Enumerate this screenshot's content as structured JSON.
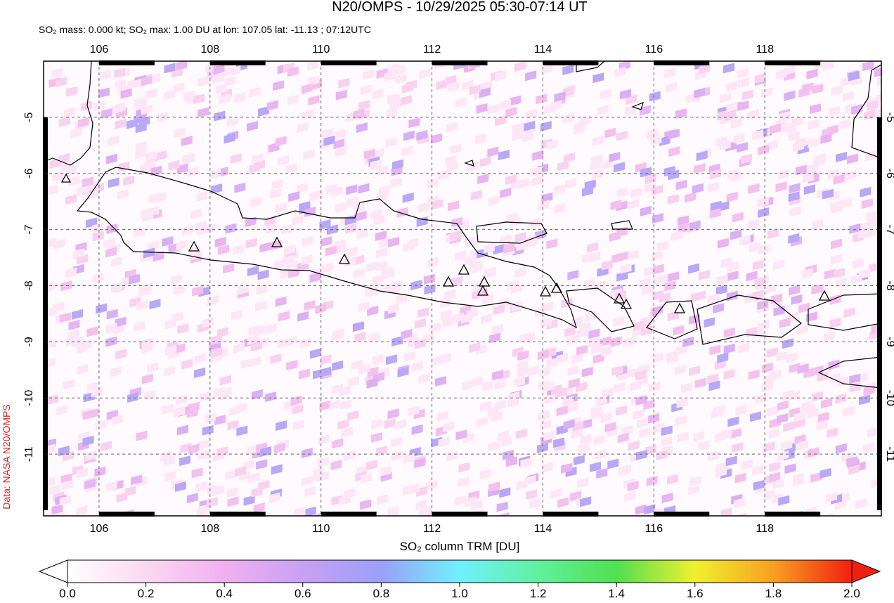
{
  "title": "N20/OMPS - 10/29/2025 05:30-07:14 UT",
  "subtitle": "SO₂ mass: 0.000 kt; SO₂ max: 1.00 DU at lon: 107.05 lat: -11.13 ; 07:12UTC",
  "credit": "Data: NASA N20/OMPS",
  "map": {
    "xlim": [
      105,
      120.1
    ],
    "ylim": [
      -12.1,
      -4
    ],
    "xticks": [
      106,
      108,
      110,
      112,
      114,
      116,
      118
    ],
    "yticks": [
      -5,
      -6,
      -7,
      -8,
      -9,
      -10,
      -11
    ],
    "grid": true
  },
  "colorbar": {
    "label": "SO₂ column TRM [DU]",
    "lim": [
      0,
      2
    ],
    "ticks": [
      {
        "value": 0,
        "label": "0.0"
      },
      {
        "value": 0.2,
        "label": "0.2"
      },
      {
        "value": 0.4,
        "label": "0.4"
      },
      {
        "value": 0.6,
        "label": "0.6"
      },
      {
        "value": 0.8,
        "label": "0.8"
      },
      {
        "value": 1,
        "label": "1.0"
      },
      {
        "value": 1.2,
        "label": "1.2"
      },
      {
        "value": 1.4,
        "label": "1.4"
      },
      {
        "value": 1.6,
        "label": "1.6"
      },
      {
        "value": 1.8,
        "label": "1.8"
      },
      {
        "value": 2,
        "label": "2.0"
      }
    ]
  }
}
